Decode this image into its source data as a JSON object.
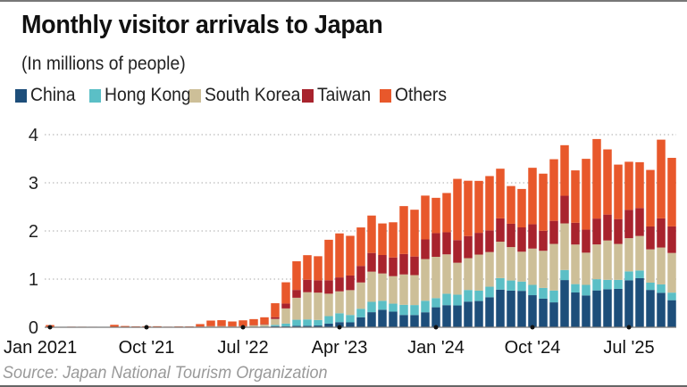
{
  "title": "Monthly visitor arrivals to Japan",
  "subtitle": "(In millions of people)",
  "source": "Source: Japan National Tourism Organization",
  "chart_data": {
    "type": "bar",
    "stacked": true,
    "title": "Monthly visitor arrivals to Japan",
    "ylabel": "(In millions of people)",
    "ylim": [
      0,
      4
    ],
    "yticks": [
      "0",
      "1",
      "2",
      "3",
      "4"
    ],
    "grid": "horizontal dotted",
    "legend": "top",
    "xtick_labels": [
      {
        "index": 0,
        "label": "Jan 2021"
      },
      {
        "index": 9,
        "label": "Oct '21"
      },
      {
        "index": 18,
        "label": "Jul '22"
      },
      {
        "index": 27,
        "label": "Apr '23"
      },
      {
        "index": 36,
        "label": "Jan '24"
      },
      {
        "index": 45,
        "label": "Oct '24"
      },
      {
        "index": 54,
        "label": "Jul '25"
      }
    ],
    "categories": [
      "2021-01",
      "2021-02",
      "2021-03",
      "2021-04",
      "2021-05",
      "2021-06",
      "2021-07",
      "2021-08",
      "2021-09",
      "2021-10",
      "2021-11",
      "2021-12",
      "2022-01",
      "2022-02",
      "2022-03",
      "2022-04",
      "2022-05",
      "2022-06",
      "2022-07",
      "2022-08",
      "2022-09",
      "2022-10",
      "2022-11",
      "2022-12",
      "2023-01",
      "2023-02",
      "2023-03",
      "2023-04",
      "2023-05",
      "2023-06",
      "2023-07",
      "2023-08",
      "2023-09",
      "2023-10",
      "2023-11",
      "2023-12",
      "2024-01",
      "2024-02",
      "2024-03",
      "2024-04",
      "2024-05",
      "2024-06",
      "2024-07",
      "2024-08",
      "2024-09",
      "2024-10",
      "2024-11",
      "2024-12",
      "2025-01",
      "2025-02",
      "2025-03",
      "2025-04",
      "2025-05",
      "2025-06",
      "2025-07",
      "2025-08",
      "2025-09",
      "2025-10",
      "2025-11"
    ],
    "series": [
      {
        "name": "China",
        "color": "#1d4e7a",
        "values": [
          0.002,
          0.002,
          0.002,
          0.002,
          0.002,
          0.002,
          0.002,
          0.002,
          0.002,
          0.002,
          0.002,
          0.002,
          0.003,
          0.002,
          0.005,
          0.008,
          0.008,
          0.005,
          0.006,
          0.008,
          0.01,
          0.023,
          0.018,
          0.03,
          0.031,
          0.036,
          0.075,
          0.106,
          0.102,
          0.208,
          0.313,
          0.364,
          0.325,
          0.255,
          0.254,
          0.311,
          0.415,
          0.459,
          0.453,
          0.533,
          0.545,
          0.623,
          0.782,
          0.761,
          0.756,
          0.666,
          0.594,
          0.517,
          0.98,
          0.722,
          0.661,
          0.765,
          0.789,
          0.797,
          0.976,
          1.019,
          0.775,
          0.715,
          0.562
        ]
      },
      {
        "name": "Hong Kong",
        "color": "#5bbfc6",
        "values": [
          0,
          0,
          0,
          0,
          0,
          0,
          0,
          0,
          0,
          0,
          0,
          0,
          0,
          0,
          0.001,
          0.002,
          0.002,
          0.002,
          0.003,
          0.003,
          0.006,
          0.026,
          0.058,
          0.126,
          0.131,
          0.115,
          0.156,
          0.185,
          0.153,
          0.176,
          0.215,
          0.185,
          0.165,
          0.211,
          0.207,
          0.239,
          0.19,
          0.237,
          0.224,
          0.241,
          0.215,
          0.219,
          0.239,
          0.21,
          0.193,
          0.214,
          0.223,
          0.246,
          0.209,
          0.174,
          0.219,
          0.233,
          0.196,
          0.187,
          0.184,
          0.16,
          0.151,
          0.175,
          0.157
        ]
      },
      {
        "name": "South Korea",
        "color": "#cdbf98",
        "values": [
          0.001,
          0.001,
          0.001,
          0.001,
          0.001,
          0.001,
          0.001,
          0.001,
          0.001,
          0.001,
          0.001,
          0.001,
          0.004,
          0.004,
          0.007,
          0.011,
          0.012,
          0.01,
          0.013,
          0.029,
          0.037,
          0.124,
          0.315,
          0.457,
          0.566,
          0.568,
          0.466,
          0.455,
          0.516,
          0.546,
          0.627,
          0.568,
          0.571,
          0.631,
          0.622,
          0.866,
          0.858,
          0.818,
          0.663,
          0.661,
          0.749,
          0.72,
          0.756,
          0.694,
          0.62,
          0.754,
          0.771,
          0.968,
          0.968,
          0.822,
          0.669,
          0.722,
          0.817,
          0.746,
          0.69,
          0.717,
          0.692,
          0.766,
          0.824
        ]
      },
      {
        "name": "Taiwan",
        "color": "#a8232d",
        "values": [
          0.001,
          0.001,
          0.001,
          0.001,
          0.001,
          0.001,
          0.001,
          0.001,
          0.001,
          0.001,
          0.001,
          0.001,
          0.001,
          0.001,
          0.002,
          0.003,
          0.003,
          0.003,
          0.004,
          0.005,
          0.009,
          0.037,
          0.101,
          0.162,
          0.259,
          0.256,
          0.279,
          0.289,
          0.304,
          0.344,
          0.388,
          0.383,
          0.388,
          0.424,
          0.386,
          0.408,
          0.492,
          0.459,
          0.47,
          0.459,
          0.452,
          0.45,
          0.484,
          0.484,
          0.505,
          0.504,
          0.415,
          0.479,
          0.574,
          0.452,
          0.478,
          0.537,
          0.538,
          0.517,
          0.587,
          0.579,
          0.475,
          0.605,
          0.551
        ]
      },
      {
        "name": "Others",
        "color": "#e8582b",
        "values": [
          0.042,
          0.003,
          0.008,
          0.007,
          0.006,
          0.005,
          0.047,
          0.022,
          0.014,
          0.018,
          0.017,
          0.008,
          0.009,
          0.01,
          0.051,
          0.115,
          0.122,
          0.1,
          0.118,
          0.124,
          0.145,
          0.289,
          0.442,
          0.595,
          0.51,
          0.5,
          0.841,
          0.914,
          0.824,
          0.799,
          0.777,
          0.656,
          0.731,
          0.995,
          0.972,
          0.91,
          0.733,
          0.815,
          1.272,
          1.149,
          1.079,
          1.128,
          1.032,
          0.784,
          0.798,
          1.174,
          1.187,
          1.28,
          1.05,
          1.088,
          1.471,
          1.652,
          1.354,
          1.131,
          1.0,
          0.953,
          1.174,
          1.635,
          1.424
        ]
      }
    ]
  }
}
